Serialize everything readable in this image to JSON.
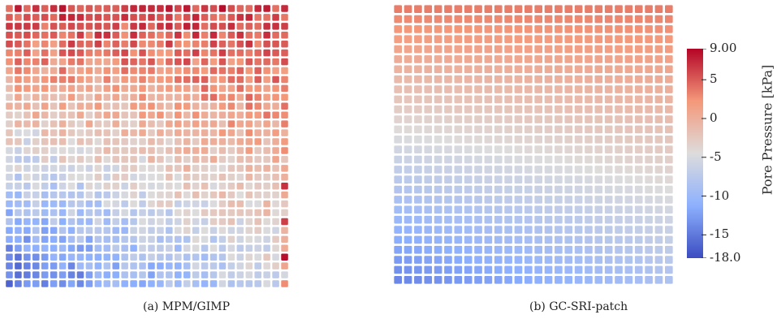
{
  "panels": [
    {
      "id": "a",
      "caption": "(a) MPM/GIMP",
      "grid": 32,
      "variant": "noisy"
    },
    {
      "id": "b",
      "caption": "(b) GC-SRI-patch",
      "grid": 28,
      "variant": "smooth"
    }
  ],
  "colorbar": {
    "title": "Pore Pressure [kPa]",
    "min": -18.0,
    "max": 9.0,
    "ticks": [
      {
        "value": 9.0,
        "label": "9.00"
      },
      {
        "value": 5,
        "label": "5"
      },
      {
        "value": 0,
        "label": "0"
      },
      {
        "value": -5,
        "label": "-5"
      },
      {
        "value": -10,
        "label": "-10"
      },
      {
        "value": -15,
        "label": "-15"
      },
      {
        "value": -18.0,
        "label": "-18.0"
      }
    ],
    "colors": [
      "#3b4cc0",
      "#8db0fe",
      "#dddcdc",
      "#f4987a",
      "#b40426"
    ]
  }
}
